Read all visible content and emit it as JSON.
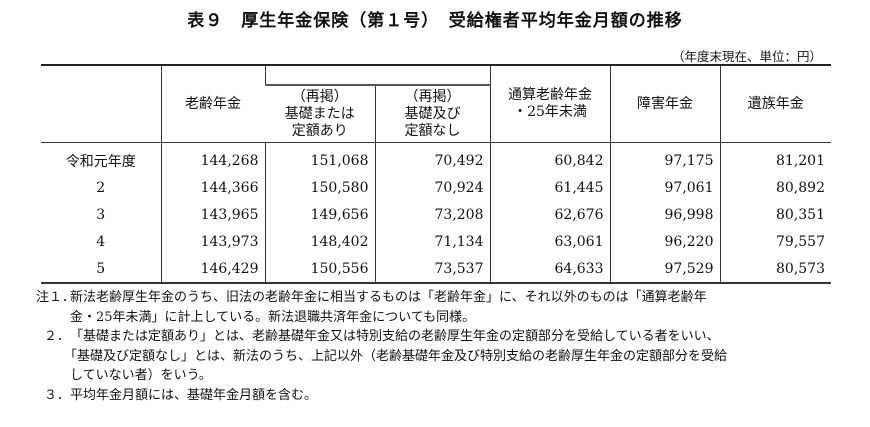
{
  "title": "表９　厚生年金保険（第１号）　受給権者平均年金月額の推移",
  "unit": "（年度末現在、単位：円）",
  "table": {
    "headers": {
      "old_age": "老齢年金",
      "reprint1": [
        "（再掲）",
        "基礎または",
        "定額あり"
      ],
      "reprint2": [
        "（再掲）",
        "基礎及び",
        "定額なし"
      ],
      "tsusan": [
        "通算老齢年金",
        "・25年未満"
      ],
      "disability": "障害年金",
      "survivor": "遺族年金"
    },
    "rows": [
      [
        "令和元年度",
        "144,268",
        "151,068",
        "70,492",
        "60,842",
        "97,175",
        "81,201"
      ],
      [
        "2",
        "144,366",
        "150,580",
        "70,924",
        "61,445",
        "97,061",
        "80,892"
      ],
      [
        "3",
        "143,965",
        "149,656",
        "73,208",
        "62,676",
        "96,998",
        "80,351"
      ],
      [
        "4",
        "143,973",
        "148,402",
        "71,134",
        "63,061",
        "96,220",
        "79,557"
      ],
      [
        "5",
        "146,429",
        "150,556",
        "73,537",
        "64,633",
        "97,529",
        "80,573"
      ]
    ]
  },
  "notes": [
    {
      "label": "注１．",
      "lines": [
        "新法老齢厚生年金のうち、旧法の老齢年金に相当するものは「老齢年金」に、それ以外のものは「通算老齢年",
        "金・25年未満」に計上している。新法退職共済年金についても同様。"
      ]
    },
    {
      "label": "２．",
      "lines": [
        "「基礎または定額あり」とは、老齢基礎年金又は特別支給の老齢厚生年金の定額部分を受給している者をいい、",
        "「基礎及び定額なし」とは、新法のうち、上記以外（老齢基礎年金及び特別支給の老齢厚生年金の定額部分を受給",
        "していない者）をいう。"
      ]
    },
    {
      "label": "３．",
      "lines": [
        "平均年金月額には、基礎年金月額を含む。"
      ]
    }
  ]
}
